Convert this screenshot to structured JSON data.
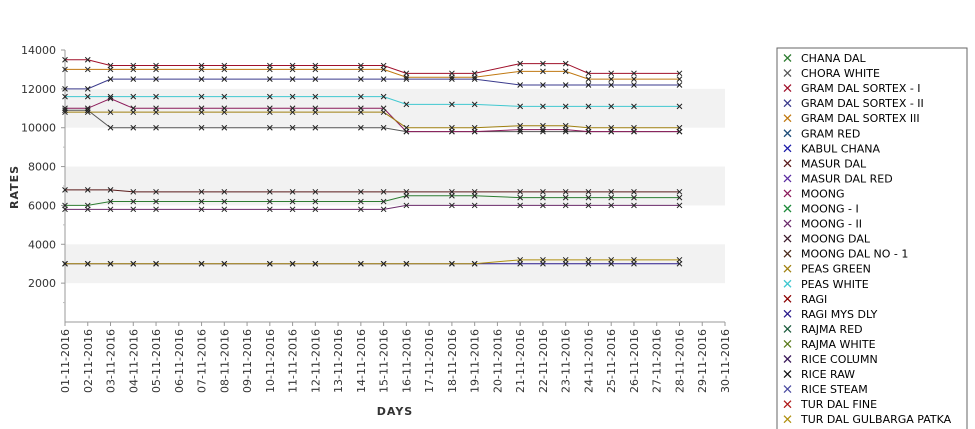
{
  "chart_data": {
    "type": "line",
    "title": "",
    "xlabel": "DAYS",
    "ylabel": "RATES",
    "ylim": [
      0,
      14000
    ],
    "yticks": [
      2000,
      4000,
      6000,
      8000,
      10000,
      12000,
      14000
    ],
    "legend_position": "right",
    "x": [
      "01-11-2016",
      "02-11-2016",
      "03-11-2016",
      "04-11-2016",
      "05-11-2016",
      "06-11-2016",
      "07-11-2016",
      "08-11-2016",
      "09-11-2016",
      "10-11-2016",
      "11-11-2016",
      "12-11-2016",
      "13-11-2016",
      "14-11-2016",
      "15-11-2016",
      "16-11-2016",
      "17-11-2016",
      "18-11-2016",
      "19-11-2016",
      "20-11-2016",
      "21-11-2016",
      "22-11-2016",
      "23-11-2016",
      "24-11-2016",
      "25-11-2016",
      "26-11-2016",
      "27-11-2016",
      "28-11-2016",
      "29-11-2016",
      "30-11-2016"
    ],
    "series": [
      {
        "name": "CHANA DAL",
        "color": "#2e7d32",
        "values": [
          6000,
          6000,
          6200,
          6200,
          6200,
          null,
          6200,
          6200,
          null,
          6200,
          6200,
          6200,
          null,
          6200,
          6200,
          6500,
          null,
          6500,
          6500,
          null,
          6400,
          6400,
          6400,
          6400,
          6400,
          6400,
          null,
          6400,
          null,
          null
        ]
      },
      {
        "name": "CHORA WHITE",
        "color": "#555555",
        "values": [
          10900,
          10900,
          10000,
          10000,
          10000,
          null,
          10000,
          10000,
          null,
          10000,
          10000,
          10000,
          null,
          10000,
          10000,
          9800,
          null,
          9800,
          9800,
          null,
          9800,
          9800,
          9800,
          9800,
          9800,
          9800,
          null,
          9800,
          null,
          null
        ]
      },
      {
        "name": "GRAM DAL SORTEX  - I",
        "color": "#a0102a",
        "values": [
          13500,
          13500,
          13200,
          13200,
          13200,
          null,
          13200,
          13200,
          null,
          13200,
          13200,
          13200,
          null,
          13200,
          13200,
          12800,
          null,
          12800,
          12800,
          null,
          13300,
          13300,
          13300,
          12800,
          12800,
          12800,
          null,
          12800,
          null,
          null
        ]
      },
      {
        "name": "GRAM DAL SORTEX - II",
        "color": "#3a3a8c",
        "values": [
          12000,
          12000,
          12500,
          12500,
          12500,
          null,
          12500,
          12500,
          null,
          12500,
          12500,
          12500,
          null,
          12500,
          12500,
          12500,
          null,
          12500,
          12500,
          null,
          12200,
          12200,
          12200,
          12200,
          12200,
          12200,
          null,
          12200,
          null,
          null
        ]
      },
      {
        "name": "GRAM DAL SORTEX III",
        "color": "#c07810",
        "values": [
          13000,
          13000,
          13000,
          13000,
          13000,
          null,
          13000,
          13000,
          null,
          13000,
          13000,
          13000,
          null,
          13000,
          13000,
          12600,
          null,
          12600,
          12600,
          null,
          12900,
          12900,
          12900,
          12500,
          12500,
          12500,
          null,
          12500,
          null,
          null
        ]
      },
      {
        "name": "GRAM RED",
        "color": "#1f4e79",
        "values": [
          null,
          null,
          null,
          null,
          null,
          null,
          null,
          null,
          null,
          null,
          null,
          null,
          null,
          null,
          null,
          null,
          null,
          null,
          null,
          null,
          null,
          null,
          null,
          null,
          null,
          null,
          null,
          null,
          null,
          null
        ]
      },
      {
        "name": "KABUL CHANA",
        "color": "#1a1aa8",
        "values": [
          null,
          null,
          null,
          null,
          null,
          null,
          null,
          null,
          null,
          null,
          null,
          null,
          null,
          null,
          null,
          null,
          null,
          null,
          null,
          null,
          null,
          null,
          null,
          null,
          null,
          null,
          null,
          null,
          null,
          null
        ]
      },
      {
        "name": "MASUR DAL",
        "color": "#5a1a1a",
        "values": [
          6800,
          6800,
          6800,
          6700,
          6700,
          null,
          6700,
          6700,
          null,
          6700,
          6700,
          6700,
          null,
          6700,
          6700,
          6700,
          null,
          6700,
          6700,
          null,
          6700,
          6700,
          6700,
          6700,
          6700,
          6700,
          null,
          6700,
          null,
          null
        ]
      },
      {
        "name": "MASUR DAL RED",
        "color": "#5a2ca0",
        "values": [
          null,
          null,
          null,
          null,
          null,
          null,
          null,
          null,
          null,
          null,
          null,
          null,
          null,
          null,
          null,
          null,
          null,
          null,
          null,
          null,
          null,
          null,
          null,
          null,
          null,
          null,
          null,
          null,
          null,
          null
        ]
      },
      {
        "name": "MOONG",
        "color": "#8b1a5a",
        "values": [
          11000,
          11000,
          11500,
          11000,
          11000,
          null,
          11000,
          11000,
          null,
          11000,
          11000,
          11000,
          null,
          11000,
          11000,
          9800,
          null,
          9800,
          9800,
          null,
          9900,
          9900,
          9900,
          9800,
          9800,
          9800,
          null,
          9800,
          null,
          null
        ]
      },
      {
        "name": "MOONG - I",
        "color": "#1e8a3a",
        "values": [
          null,
          null,
          null,
          null,
          null,
          null,
          null,
          null,
          null,
          null,
          null,
          null,
          null,
          null,
          null,
          null,
          null,
          null,
          null,
          null,
          null,
          null,
          null,
          null,
          null,
          null,
          null,
          null,
          null,
          null
        ]
      },
      {
        "name": "MOONG - II",
        "color": "#6a2a6a",
        "values": [
          5800,
          5800,
          5800,
          5800,
          5800,
          null,
          5800,
          5800,
          null,
          5800,
          5800,
          5800,
          null,
          5800,
          5800,
          6000,
          null,
          6000,
          6000,
          null,
          6000,
          6000,
          6000,
          6000,
          6000,
          6000,
          null,
          6000,
          null,
          null
        ]
      },
      {
        "name": "MOONG DAL",
        "color": "#3a1a2a",
        "values": [
          null,
          null,
          null,
          null,
          null,
          null,
          null,
          null,
          null,
          null,
          null,
          null,
          null,
          null,
          null,
          null,
          null,
          null,
          null,
          null,
          null,
          null,
          null,
          null,
          null,
          null,
          null,
          null,
          null,
          null
        ]
      },
      {
        "name": "MOONG DAL NO - 1",
        "color": "#4a2a1a",
        "values": [
          null,
          null,
          null,
          null,
          null,
          null,
          null,
          null,
          null,
          null,
          null,
          null,
          null,
          null,
          null,
          null,
          null,
          null,
          null,
          null,
          null,
          null,
          null,
          null,
          null,
          null,
          null,
          null,
          null,
          null
        ]
      },
      {
        "name": "PEAS GREEN",
        "color": "#a08010",
        "values": [
          10800,
          10800,
          10800,
          10800,
          10800,
          null,
          10800,
          10800,
          null,
          10800,
          10800,
          10800,
          null,
          10800,
          10800,
          10000,
          null,
          10000,
          10000,
          null,
          10100,
          10100,
          10100,
          10000,
          10000,
          10000,
          null,
          10000,
          null,
          null
        ]
      },
      {
        "name": "PEAS WHITE",
        "color": "#40c8d0",
        "values": [
          11600,
          11600,
          11600,
          11600,
          11600,
          null,
          11600,
          11600,
          null,
          11600,
          11600,
          11600,
          null,
          11600,
          11600,
          11200,
          null,
          11200,
          11200,
          null,
          11100,
          11100,
          11100,
          11100,
          11100,
          11100,
          null,
          11100,
          null,
          null
        ]
      },
      {
        "name": "RAGI",
        "color": "#8b0000",
        "values": [
          null,
          null,
          null,
          null,
          null,
          null,
          null,
          null,
          null,
          null,
          null,
          null,
          null,
          null,
          null,
          null,
          null,
          null,
          null,
          null,
          null,
          null,
          null,
          null,
          null,
          null,
          null,
          null,
          null,
          null
        ]
      },
      {
        "name": "RAGI MYS DLY",
        "color": "#2a1a8b",
        "values": [
          3000,
          3000,
          3000,
          3000,
          3000,
          null,
          3000,
          3000,
          null,
          3000,
          3000,
          3000,
          null,
          3000,
          3000,
          3000,
          null,
          3000,
          3000,
          null,
          3000,
          3000,
          3000,
          3000,
          3000,
          3000,
          null,
          3000,
          null,
          null
        ]
      },
      {
        "name": "RAJMA RED",
        "color": "#1a5a3a",
        "values": [
          null,
          null,
          null,
          null,
          null,
          null,
          null,
          null,
          null,
          null,
          null,
          null,
          null,
          null,
          null,
          null,
          null,
          null,
          null,
          null,
          null,
          null,
          null,
          null,
          null,
          null,
          null,
          null,
          null,
          null
        ]
      },
      {
        "name": "RAJMA WHITE",
        "color": "#5a7a1a",
        "values": [
          null,
          null,
          null,
          null,
          null,
          null,
          null,
          null,
          null,
          null,
          null,
          null,
          null,
          null,
          null,
          null,
          null,
          null,
          null,
          null,
          null,
          null,
          null,
          null,
          null,
          null,
          null,
          null,
          null,
          null
        ]
      },
      {
        "name": "RICE COLUMN",
        "color": "#3a1a5a",
        "values": [
          null,
          null,
          null,
          null,
          null,
          null,
          null,
          null,
          null,
          null,
          null,
          null,
          null,
          null,
          null,
          null,
          null,
          null,
          null,
          null,
          null,
          null,
          null,
          null,
          null,
          null,
          null,
          null,
          null,
          null
        ]
      },
      {
        "name": "RICE RAW",
        "color": "#111111",
        "values": [
          null,
          null,
          null,
          null,
          null,
          null,
          null,
          null,
          null,
          null,
          null,
          null,
          null,
          null,
          null,
          null,
          null,
          null,
          null,
          null,
          null,
          null,
          null,
          null,
          null,
          null,
          null,
          null,
          null,
          null
        ]
      },
      {
        "name": "RICE STEAM",
        "color": "#4a4aa0",
        "values": [
          null,
          null,
          null,
          null,
          null,
          null,
          null,
          null,
          null,
          null,
          null,
          null,
          null,
          null,
          null,
          null,
          null,
          null,
          null,
          null,
          null,
          null,
          null,
          null,
          null,
          null,
          null,
          null,
          null,
          null
        ]
      },
      {
        "name": "TUR DAL FINE",
        "color": "#b01a1a",
        "values": [
          null,
          null,
          null,
          null,
          null,
          null,
          null,
          null,
          null,
          null,
          null,
          null,
          null,
          null,
          null,
          null,
          null,
          null,
          null,
          null,
          null,
          null,
          null,
          null,
          null,
          null,
          null,
          null,
          null,
          null
        ]
      },
      {
        "name": "TUR DAL GULBARGA PATKA",
        "color": "#b09010",
        "values": [
          3000,
          3000,
          3000,
          3000,
          3000,
          null,
          3000,
          3000,
          null,
          3000,
          3000,
          3000,
          null,
          3000,
          3000,
          3000,
          null,
          3000,
          3000,
          null,
          3200,
          3200,
          3200,
          3200,
          3200,
          3200,
          null,
          3200,
          null,
          null
        ]
      }
    ]
  }
}
